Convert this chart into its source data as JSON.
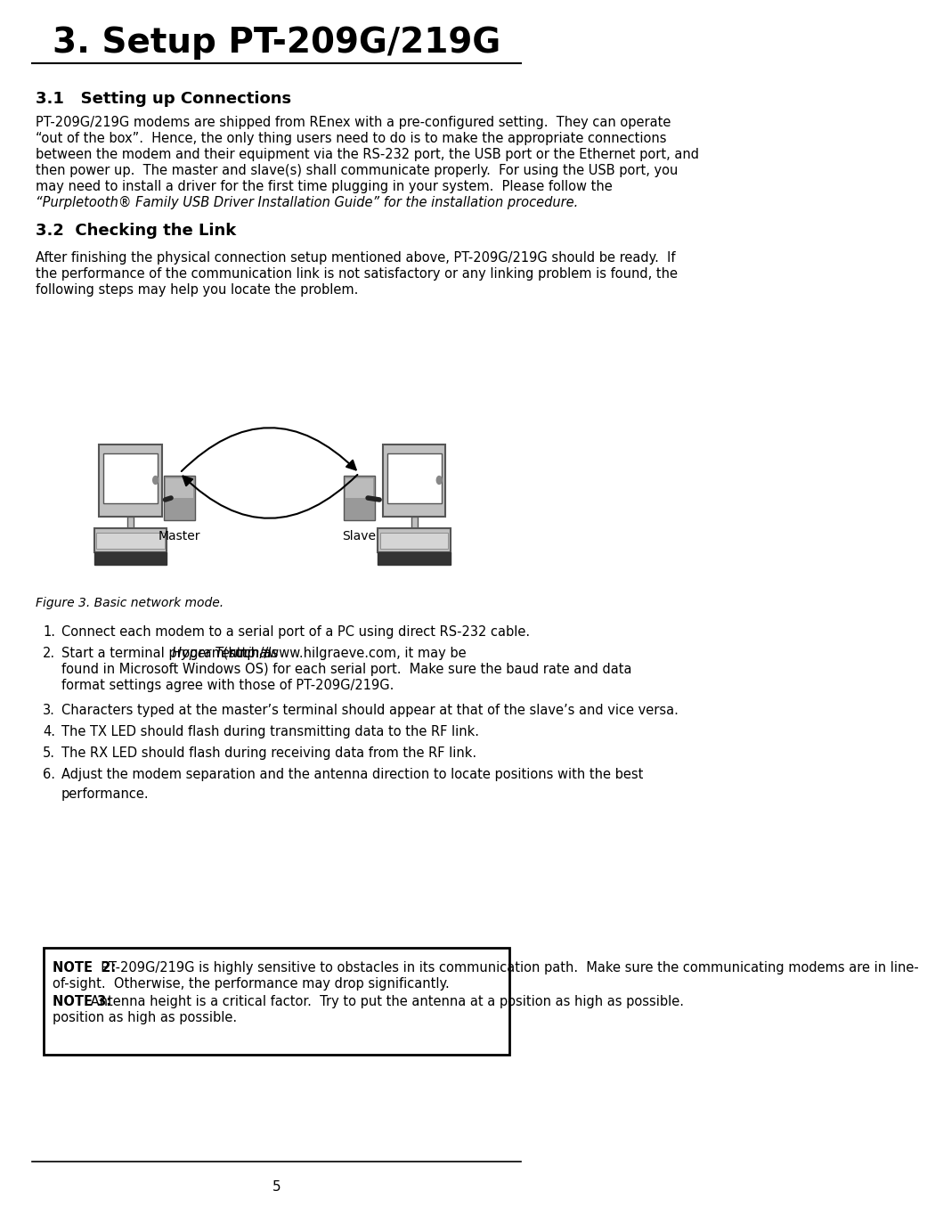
{
  "title": "3. Setup PT-209G/219G",
  "section31_heading": "3.1   Setting up Connections",
  "section32_heading": "3.2  Checking the Link",
  "figure_caption": "Figure 3. Basic network mode.",
  "page_number": "5",
  "bg_color": "#ffffff",
  "text_color": "#000000",
  "lines_31": [
    "PT-209G/219G modems are shipped from REnex with a pre-configured setting.  They can operate",
    "“out of the box”.  Hence, the only thing users need to do is to make the appropriate connections",
    "between the modem and their equipment via the RS-232 port, the USB port or the Ethernet port, and",
    "then power up.  The master and slave(s) shall communicate properly.  For using the USB port, you",
    "may need to install a driver for the first time plugging in your system.  Please follow the",
    "“Purpletooth® Family USB Driver Installation Guide” for the installation procedure."
  ],
  "lines_32": [
    "After finishing the physical connection setup mentioned above, PT-209G/219G should be ready.  If",
    "the performance of the communication link is not satisfactory or any linking problem is found, the",
    "following steps may help you locate the problem."
  ],
  "list_nums": [
    "1.",
    "2.",
    "3.",
    "4.",
    "5.",
    "6."
  ],
  "list_texts": [
    "Connect each modem to a serial port of a PC using direct RS-232 cable.",
    "Start a terminal program such as Hyper Terminal (http://www.hilgraeve.com, it may be\nfound in Microsoft Windows OS) for each serial port.  Make sure the baud rate and data\nformat settings agree with those of PT-209G/219G.",
    "Characters typed at the master’s terminal should appear at that of the slave’s and vice versa.",
    "The TX LED should flash during transmitting data to the RF link.",
    "The RX LED should flash during receiving data from the RF link.",
    "Adjust the modem separation and the antenna direction to locate positions with the best\nperformance."
  ],
  "note2_bold": "NOTE  2:",
  "note2_line1": "  PT-209G/219G is highly sensitive to obstacles in its communication path.  Make sure the communicating modems are in line-",
  "note2_line2": "of-sight.  Otherwise, the performance may drop significantly.",
  "note3_bold": "NOTE 3:",
  "note3_text": " Antenna height is a critical factor.  Try to put the antenna at a position as high as possible."
}
